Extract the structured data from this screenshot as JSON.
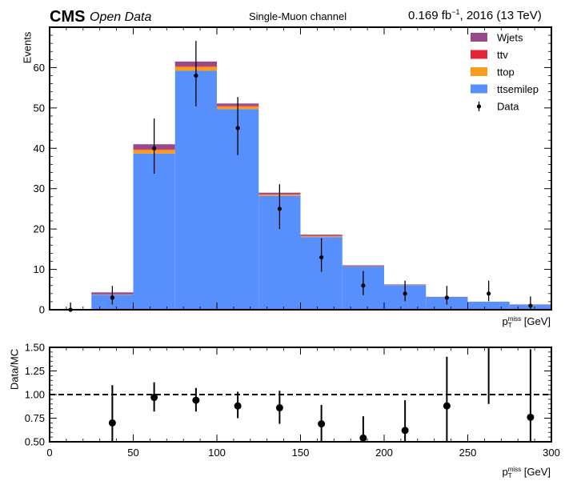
{
  "header": {
    "experiment": "CMS",
    "tag": "Open Data",
    "channel": "Single-Muon channel",
    "lumi_prefix": "0.169 fb",
    "lumi_exp": "−1",
    "lumi_suffix": ", 2016 (13 TeV)"
  },
  "chart_data": [
    {
      "type": "bar",
      "stacked": true,
      "ylabel": "Events",
      "xlabel_main": "p",
      "xlabel_sub": "T",
      "xlabel_sup": "miss",
      "xlabel_unit": " [GeV]",
      "xlim": [
        0,
        300
      ],
      "ylim": [
        0,
        70
      ],
      "yticks": [
        0,
        10,
        20,
        30,
        40,
        50,
        60
      ],
      "bin_edges": [
        0,
        25,
        50,
        75,
        100,
        125,
        150,
        175,
        200,
        225,
        250,
        275,
        300
      ],
      "legend_position": "top-right",
      "series": [
        {
          "name": "ttsemilep",
          "color": "#5790fc",
          "values": [
            0,
            3.7,
            38.7,
            59.2,
            49.7,
            28.2,
            18.0,
            10.7,
            6.1,
            3.1,
            2.0,
            1.2
          ]
        },
        {
          "name": "ttop",
          "color": "#f89c20",
          "values": [
            0,
            0.1,
            0.9,
            1.0,
            0.7,
            0.3,
            0.2,
            0.1,
            0.1,
            0.0,
            0.0,
            0.0
          ]
        },
        {
          "name": "ttv",
          "color": "#e42536",
          "values": [
            0,
            0.0,
            0.2,
            0.2,
            0.2,
            0.1,
            0.1,
            0.0,
            0.0,
            0.0,
            0.0,
            0.0
          ]
        },
        {
          "name": "Wjets",
          "color": "#964a8b",
          "values": [
            0,
            0.5,
            1.2,
            1.1,
            0.5,
            0.4,
            0.3,
            0.2,
            0.1,
            0.1,
            0.0,
            0.1
          ]
        }
      ],
      "data_points": {
        "name": "Data",
        "x": [
          12.5,
          37.5,
          62.5,
          87.5,
          112.5,
          137.5,
          162.5,
          187.5,
          212.5,
          237.5,
          262.5,
          287.5
        ],
        "y": [
          0,
          3,
          40,
          58,
          45,
          25,
          13,
          6,
          4,
          3,
          4,
          1
        ],
        "err_lo": [
          0,
          1.7,
          6.3,
          7.6,
          6.7,
          5.0,
          3.6,
          2.4,
          1.9,
          1.7,
          1.9,
          1.0
        ],
        "err_hi": [
          1.8,
          2.9,
          7.4,
          8.6,
          7.7,
          6.1,
          4.7,
          3.6,
          3.2,
          2.9,
          3.2,
          2.3
        ]
      }
    },
    {
      "type": "scatter",
      "ylabel": "Data/MC",
      "xlabel_main": "p",
      "xlabel_sub": "T",
      "xlabel_sup": "miss",
      "xlabel_unit": " [GeV]",
      "xlim": [
        0,
        300
      ],
      "ylim": [
        0.5,
        1.5
      ],
      "xticks": [
        0,
        50,
        100,
        150,
        200,
        250,
        300
      ],
      "yticks": [
        "0.50",
        "0.75",
        "1.00",
        "1.25",
        "1.50"
      ],
      "reference_line": 1.0,
      "x": [
        37.5,
        62.5,
        87.5,
        112.5,
        137.5,
        162.5,
        187.5,
        212.5,
        237.5,
        262.5,
        287.5
      ],
      "y": [
        0.7,
        0.97,
        0.94,
        0.88,
        0.86,
        0.69,
        0.54,
        0.62,
        0.88,
        null,
        0.76
      ],
      "err_lo": [
        0.7,
        0.15,
        0.12,
        0.13,
        0.17,
        0.19,
        0.22,
        0.3,
        0.5,
        null,
        0.76
      ],
      "err_hi": [
        0.4,
        0.16,
        0.13,
        0.15,
        0.18,
        0.2,
        0.23,
        0.32,
        0.52,
        0.59,
        0.72
      ]
    }
  ]
}
